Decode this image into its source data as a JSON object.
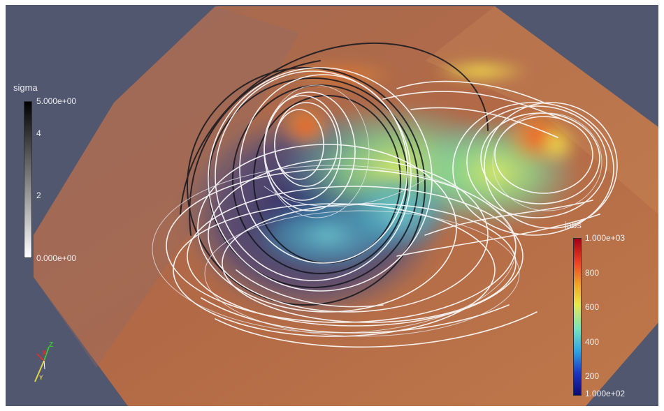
{
  "colorbars": {
    "sigma": {
      "title": "sigma",
      "labels": [
        "5.000e+00",
        "4",
        "2",
        "0.000e+00"
      ],
      "colors": [
        "#000000",
        "#ffffff"
      ]
    },
    "jabs": {
      "title": "jabs",
      "labels": [
        "1.000e+03",
        "800",
        "600",
        "400",
        "200",
        "1.000e+02"
      ],
      "colors": [
        "#a00018",
        "#e8431c",
        "#f6a52a",
        "#e8e84a",
        "#72e4c0",
        "#2aa5e6",
        "#1a35c8",
        "#0e0a78"
      ]
    }
  },
  "orientation_axes": {
    "x": "X",
    "y": "Y",
    "z": "Z"
  },
  "colors": {
    "background": "#51576e",
    "volume": "#b06a48",
    "streamline_light": "#ffffff",
    "streamline_dark": "#14161f"
  }
}
